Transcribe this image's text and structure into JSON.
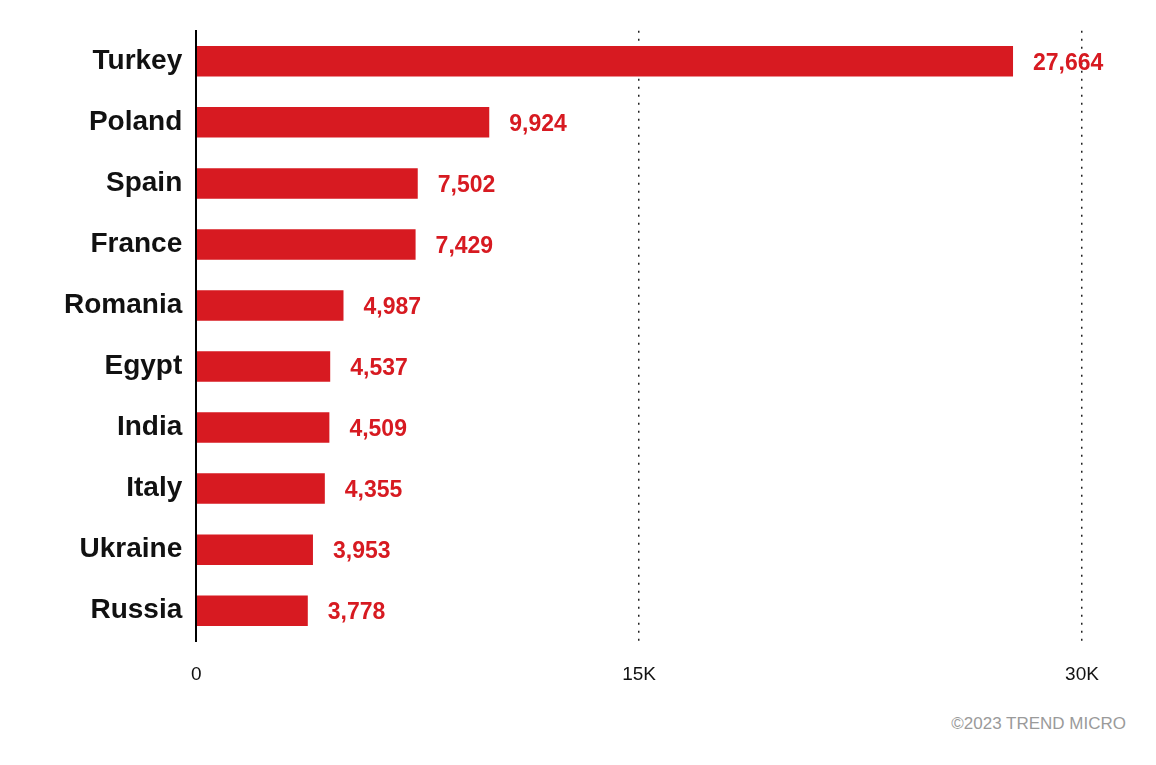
{
  "chart_data": {
    "type": "bar",
    "orientation": "horizontal",
    "categories": [
      "Turkey",
      "Poland",
      "Spain",
      "France",
      "Romania",
      "Egypt",
      "India",
      "Italy",
      "Ukraine",
      "Russia"
    ],
    "values": [
      27664,
      9924,
      7502,
      7429,
      4987,
      4537,
      4509,
      4355,
      3953,
      3778
    ],
    "value_labels": [
      "27,664",
      "9,924",
      "7,502",
      "7,429",
      "4,987",
      "4,537",
      "4,509",
      "4,355",
      "3,953",
      "3,778"
    ],
    "color": "#d71a21",
    "xlim": [
      0,
      30000
    ],
    "xticks": [
      0,
      {
        "value": 15000,
        "label": "15K"
      },
      {
        "value": 30000,
        "label": "30K"
      }
    ],
    "grid": true,
    "data_labels": true,
    "annotation": "©2023 TREND MICRO"
  }
}
